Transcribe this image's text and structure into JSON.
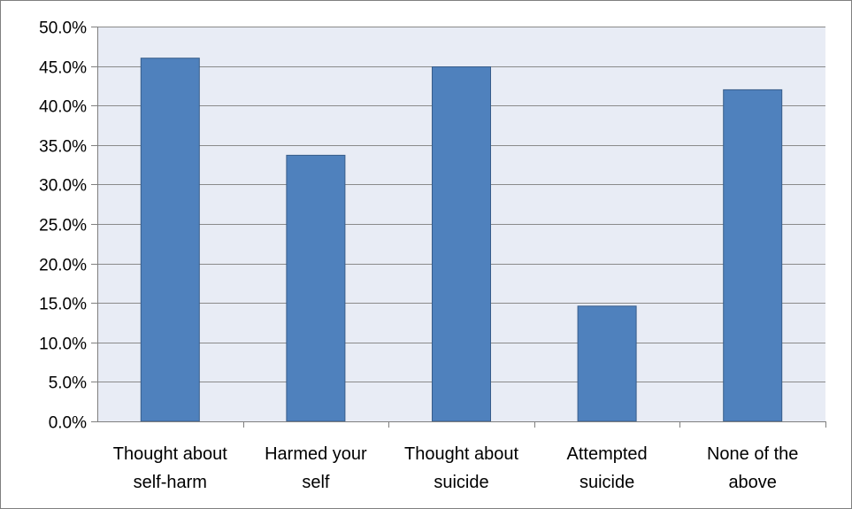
{
  "chart_data": {
    "type": "bar",
    "title": "",
    "xlabel": "",
    "ylabel": "",
    "categories": [
      [
        "Thought about",
        "self-harm"
      ],
      [
        "Harmed your",
        "self"
      ],
      [
        "Thought about",
        "suicide"
      ],
      [
        "Attempted",
        "suicide"
      ],
      [
        "None of the",
        "above"
      ]
    ],
    "values": [
      46.0,
      33.7,
      44.9,
      14.6,
      42.0
    ],
    "ylim": [
      0,
      50
    ],
    "yticks": [
      "0.0%",
      "5.0%",
      "10.0%",
      "15.0%",
      "20.0%",
      "25.0%",
      "30.0%",
      "35.0%",
      "40.0%",
      "45.0%",
      "50.0%"
    ],
    "grid": true,
    "legend": "none",
    "colors": {
      "bar_fill": "#4f81bd",
      "bar_stroke": "#385d8a",
      "plot_bg": "#e8ecf5",
      "gridline": "#8a8a8a",
      "frame": "#7f7f7f"
    }
  }
}
